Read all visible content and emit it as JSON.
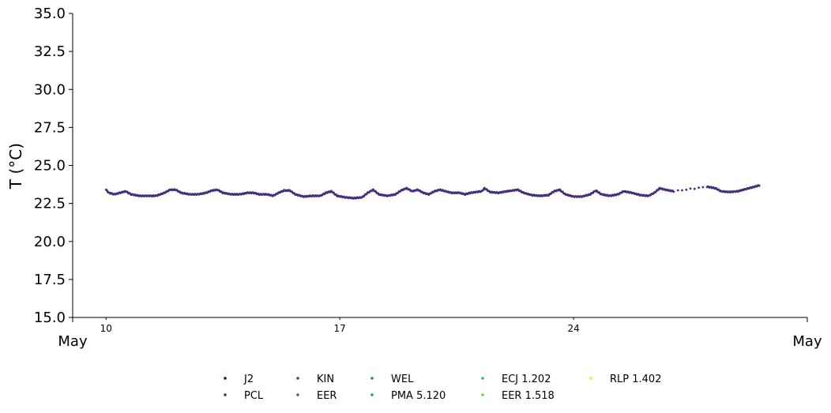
{
  "chart_data": {
    "type": "scatter",
    "ylabel": "T ($^\\circ$C)",
    "ylabel_display": "T (°C)",
    "ylim": [
      15.0,
      35.0
    ],
    "yticks": [
      "15.0",
      "17.5",
      "20.0",
      "22.5",
      "25.0",
      "27.5",
      "30.0",
      "32.5",
      "35.0"
    ],
    "xlim": [
      "May 9",
      "May 31"
    ],
    "xticks_minor": [
      {
        "date": "May 10",
        "label": "10"
      },
      {
        "date": "May 17",
        "label": "17"
      },
      {
        "date": "May 24",
        "label": "24"
      }
    ],
    "xticks_major": [
      {
        "date": "May 9",
        "label": "May"
      },
      {
        "date": "May 31",
        "label": "May"
      }
    ],
    "legend_position": "bottom-center",
    "legend_columns": 5,
    "series": [
      {
        "name": "J2",
        "color": "#440154",
        "x": [],
        "y": []
      },
      {
        "name": "PCL",
        "color": "#472f7d",
        "x": [],
        "y": []
      },
      {
        "name": "KIN",
        "color": "#3e4a89",
        "x": [],
        "y": []
      },
      {
        "name": "EER",
        "color": "#31688e",
        "x": [],
        "y": []
      },
      {
        "name": "WEL",
        "color": "#26828e",
        "x": [],
        "y": []
      },
      {
        "name": "PMA 5.120",
        "color": "#1f9e89",
        "x": [],
        "y": []
      },
      {
        "name": "ECJ 1.202",
        "color": "#35b779",
        "x": [],
        "y": []
      },
      {
        "name": "EER 1.518",
        "color": "#6ece58",
        "x": [],
        "y": []
      },
      {
        "name": "RLP 1.402",
        "color": "#fde725",
        "x": [],
        "y": []
      }
    ],
    "trace": {
      "series": "PCL",
      "points": [
        [
          "May 10 00:00",
          23.4
        ],
        [
          "May 10 02:00",
          23.2
        ],
        [
          "May 10 06:00",
          23.1
        ],
        [
          "May 10 10:00",
          23.2
        ],
        [
          "May 10 14:00",
          23.3
        ],
        [
          "May 10 18:00",
          23.1
        ],
        [
          "May 11 00:00",
          23.0
        ],
        [
          "May 11 06:00",
          23.0
        ],
        [
          "May 11 12:00",
          23.0
        ],
        [
          "May 11 18:00",
          23.2
        ],
        [
          "May 11 22:00",
          23.4
        ],
        [
          "May 12 02:00",
          23.4
        ],
        [
          "May 12 06:00",
          23.2
        ],
        [
          "May 12 12:00",
          23.1
        ],
        [
          "May 12 18:00",
          23.1
        ],
        [
          "May 13 00:00",
          23.2
        ],
        [
          "May 13 04:00",
          23.35
        ],
        [
          "May 13 08:00",
          23.4
        ],
        [
          "May 13 12:00",
          23.2
        ],
        [
          "May 13 18:00",
          23.1
        ],
        [
          "May 14 00:00",
          23.1
        ],
        [
          "May 14 06:00",
          23.2
        ],
        [
          "May 14 10:00",
          23.2
        ],
        [
          "May 14 14:00",
          23.1
        ],
        [
          "May 14 20:00",
          23.1
        ],
        [
          "May 15 00:00",
          23.0
        ],
        [
          "May 15 04:00",
          23.2
        ],
        [
          "May 15 08:00",
          23.35
        ],
        [
          "May 15 12:00",
          23.35
        ],
        [
          "May 15 16:00",
          23.1
        ],
        [
          "May 15 22:00",
          22.95
        ],
        [
          "May 16 04:00",
          23.0
        ],
        [
          "May 16 10:00",
          23.0
        ],
        [
          "May 16 14:00",
          23.2
        ],
        [
          "May 16 18:00",
          23.3
        ],
        [
          "May 16 22:00",
          23.0
        ],
        [
          "May 17 04:00",
          22.9
        ],
        [
          "May 17 10:00",
          22.85
        ],
        [
          "May 17 16:00",
          22.9
        ],
        [
          "May 17 20:00",
          23.2
        ],
        [
          "May 18 00:00",
          23.4
        ],
        [
          "May 18 04:00",
          23.1
        ],
        [
          "May 18 10:00",
          23.0
        ],
        [
          "May 18 16:00",
          23.1
        ],
        [
          "May 18 20:00",
          23.35
        ],
        [
          "May 19 00:00",
          23.5
        ],
        [
          "May 19 04:00",
          23.3
        ],
        [
          "May 19 08:00",
          23.4
        ],
        [
          "May 19 12:00",
          23.2
        ],
        [
          "May 19 16:00",
          23.1
        ],
        [
          "May 19 20:00",
          23.3
        ],
        [
          "May 20 00:00",
          23.4
        ],
        [
          "May 20 04:00",
          23.3
        ],
        [
          "May 20 08:00",
          23.2
        ],
        [
          "May 20 14:00",
          23.2
        ],
        [
          "May 20 18:00",
          23.1
        ],
        [
          "May 20 22:00",
          23.2
        ],
        [
          "May 21 02:00",
          23.25
        ],
        [
          "May 21 06:00",
          23.3
        ],
        [
          "May 21 08:00",
          23.5
        ],
        [
          "May 21 12:00",
          23.25
        ],
        [
          "May 21 18:00",
          23.2
        ],
        [
          "May 22 00:00",
          23.3
        ],
        [
          "May 22 04:00",
          23.35
        ],
        [
          "May 22 08:00",
          23.4
        ],
        [
          "May 22 12:00",
          23.2
        ],
        [
          "May 22 18:00",
          23.05
        ],
        [
          "May 23 00:00",
          23.0
        ],
        [
          "May 23 06:00",
          23.05
        ],
        [
          "May 23 10:00",
          23.3
        ],
        [
          "May 23 14:00",
          23.4
        ],
        [
          "May 23 18:00",
          23.1
        ],
        [
          "May 24 00:00",
          22.95
        ],
        [
          "May 24 06:00",
          22.95
        ],
        [
          "May 24 12:00",
          23.1
        ],
        [
          "May 24 16:00",
          23.35
        ],
        [
          "May 24 20:00",
          23.1
        ],
        [
          "May 25 02:00",
          23.0
        ],
        [
          "May 25 08:00",
          23.1
        ],
        [
          "May 25 12:00",
          23.3
        ],
        [
          "May 25 18:00",
          23.2
        ],
        [
          "May 26 00:00",
          23.05
        ],
        [
          "May 26 06:00",
          23.0
        ],
        [
          "May 26 10:00",
          23.2
        ],
        [
          "May 26 14:00",
          23.5
        ],
        [
          "May 26 18:00",
          23.4
        ],
        [
          "May 27 00:00",
          23.3
        ],
        [
          "May 28 00:00",
          23.6
        ],
        [
          "May 28 06:00",
          23.5
        ],
        [
          "May 28 10:00",
          23.3
        ],
        [
          "May 28 16:00",
          23.25
        ],
        [
          "May 28 22:00",
          23.3
        ],
        [
          "May 29 04:00",
          23.45
        ],
        [
          "May 29 10:00",
          23.6
        ],
        [
          "May 29 14:00",
          23.7
        ]
      ]
    }
  }
}
